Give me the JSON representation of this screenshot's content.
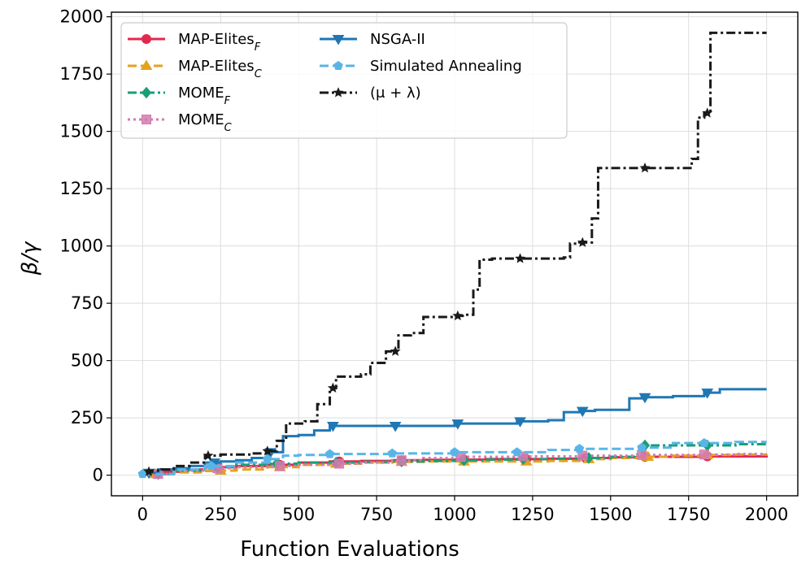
{
  "chart_data": {
    "type": "line",
    "xlabel": "Function Evaluations",
    "ylabel": "β/γ",
    "xlim": [
      -100,
      2100
    ],
    "ylim": [
      -90,
      2020
    ],
    "xticks": [
      0,
      250,
      500,
      750,
      1000,
      1250,
      1500,
      1750,
      2000
    ],
    "yticks": [
      0,
      250,
      500,
      750,
      1000,
      1250,
      1500,
      1750,
      2000
    ],
    "grid": true,
    "legend_position": "top-left",
    "series": [
      {
        "name": "MAP-Elites",
        "subscript": "F",
        "color": "#e3284f",
        "dash": "solid",
        "marker": "circle",
        "x": [
          0,
          60,
          120,
          200,
          300,
          400,
          500,
          600,
          700,
          800,
          900,
          1000,
          1100,
          1200,
          1300,
          1400,
          1500,
          1600,
          1700,
          1800,
          1900,
          2000
        ],
        "y": [
          5,
          15,
          25,
          35,
          40,
          45,
          55,
          60,
          62,
          65,
          67,
          68,
          70,
          70,
          72,
          75,
          78,
          80,
          80,
          82,
          82,
          85
        ],
        "markers_at": [
          40,
          240,
          440,
          630,
          830,
          1030,
          1230,
          1420,
          1610,
          1810
        ]
      },
      {
        "name": "MAP-Elites",
        "subscript": "C",
        "color": "#e6a21f",
        "dash": "dashed",
        "marker": "triangle-up",
        "x": [
          0,
          100,
          200,
          250,
          300,
          400,
          500,
          600,
          700,
          800,
          900,
          1000,
          1100,
          1200,
          1300,
          1400,
          1500,
          1600,
          1700,
          1800,
          1900,
          2000
        ],
        "y": [
          5,
          12,
          18,
          20,
          25,
          35,
          45,
          50,
          55,
          58,
          60,
          60,
          60,
          60,
          62,
          70,
          75,
          80,
          85,
          88,
          90,
          92
        ],
        "markers_at": [
          40,
          250,
          440,
          620,
          830,
          1030,
          1230,
          1430,
          1620,
          1810
        ]
      },
      {
        "name": "MOME",
        "subscript": "F",
        "color": "#1a9e76",
        "dash": "dashdot",
        "marker": "diamond",
        "x": [
          0,
          100,
          200,
          300,
          400,
          500,
          600,
          700,
          800,
          900,
          1000,
          1100,
          1200,
          1300,
          1400,
          1500,
          1580,
          1600,
          1700,
          1800,
          1900,
          2000
        ],
        "y": [
          5,
          20,
          35,
          45,
          50,
          55,
          55,
          58,
          60,
          62,
          65,
          68,
          70,
          72,
          75,
          80,
          90,
          130,
          130,
          130,
          135,
          135
        ],
        "markers_at": [
          50,
          240,
          430,
          620,
          830,
          1030,
          1220,
          1430,
          1610,
          1810
        ]
      },
      {
        "name": "MOME",
        "subscript": "C",
        "color": "#d47ab0",
        "dash": "dotted",
        "marker": "square",
        "x": [
          0,
          100,
          200,
          300,
          400,
          500,
          600,
          700,
          800,
          900,
          1000,
          1100,
          1200,
          1300,
          1400,
          1500,
          1600,
          1700,
          1800,
          1900,
          2000
        ],
        "y": [
          5,
          20,
          30,
          35,
          40,
          45,
          50,
          55,
          65,
          75,
          80,
          80,
          82,
          82,
          85,
          85,
          88,
          88,
          90,
          92,
          92
        ],
        "markers_at": [
          50,
          240,
          440,
          630,
          830,
          1020,
          1220,
          1410,
          1600,
          1800
        ]
      },
      {
        "name": "NSGA-II",
        "subscript": "",
        "color": "#1f77b4",
        "dash": "solid",
        "marker": "triangle-down",
        "x": [
          0,
          50,
          100,
          150,
          200,
          250,
          300,
          350,
          400,
          450,
          500,
          550,
          600,
          800,
          1000,
          1100,
          1200,
          1250,
          1300,
          1350,
          1400,
          1450,
          1500,
          1560,
          1600,
          1700,
          1800,
          1850,
          2000
        ],
        "y": [
          10,
          25,
          30,
          40,
          55,
          60,
          65,
          75,
          100,
          170,
          175,
          195,
          215,
          215,
          225,
          225,
          235,
          235,
          240,
          275,
          280,
          285,
          285,
          335,
          340,
          345,
          360,
          375,
          375
        ],
        "markers_at": [
          20,
          230,
          410,
          610,
          810,
          1010,
          1210,
          1410,
          1610,
          1810
        ]
      },
      {
        "name": "Simulated Annealing",
        "subscript": "",
        "color": "#5ab5e6",
        "dash": "dashed",
        "marker": "pentagon",
        "x": [
          0,
          100,
          200,
          300,
          400,
          450,
          500,
          600,
          700,
          800,
          900,
          1000,
          1100,
          1200,
          1300,
          1400,
          1500,
          1600,
          1700,
          1800,
          1900,
          2000
        ],
        "y": [
          5,
          25,
          40,
          55,
          70,
          85,
          88,
          92,
          92,
          95,
          95,
          100,
          100,
          100,
          110,
          115,
          115,
          120,
          140,
          140,
          145,
          145
        ],
        "markers_at": [
          0,
          220,
          400,
          600,
          800,
          1000,
          1200,
          1400,
          1600,
          1800
        ]
      },
      {
        "name": "(μ + λ)",
        "subscript": "",
        "color": "#1a1a1a",
        "dash": "dashdot",
        "marker": "star",
        "x": [
          10,
          30,
          60,
          100,
          150,
          200,
          250,
          300,
          350,
          400,
          430,
          460,
          520,
          560,
          600,
          620,
          700,
          730,
          780,
          820,
          860,
          900,
          1000,
          1030,
          1060,
          1080,
          1120,
          1200,
          1350,
          1370,
          1400,
          1440,
          1460,
          1500,
          1600,
          1700,
          1760,
          1780,
          1800,
          1820,
          1900,
          2000
        ],
        "y": [
          15,
          20,
          25,
          40,
          55,
          85,
          90,
          90,
          95,
          105,
          150,
          225,
          235,
          310,
          380,
          430,
          440,
          490,
          540,
          610,
          620,
          690,
          695,
          700,
          810,
          940,
          945,
          945,
          950,
          1010,
          1015,
          1120,
          1340,
          1340,
          1340,
          1340,
          1380,
          1560,
          1580,
          1930,
          1930,
          1930
        ],
        "markers_at": [
          20,
          210,
          400,
          610,
          810,
          1010,
          1210,
          1410,
          1610,
          1810
        ]
      }
    ]
  }
}
